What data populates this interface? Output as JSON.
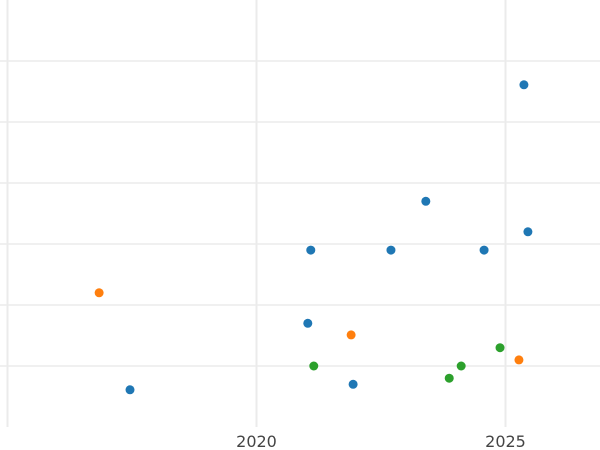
{
  "chart_data": {
    "type": "scatter",
    "title": "",
    "xlabel": "",
    "ylabel": "",
    "xlim": [
      2015,
      2026.9
    ],
    "ylim": [
      0,
      7
    ],
    "grid": true,
    "x_ticks": [
      2015,
      2020,
      2025
    ],
    "x_tick_labels": [
      "",
      "2020",
      "2025"
    ],
    "y_ticks": [
      1,
      2,
      3,
      4,
      5,
      6
    ],
    "series": [
      {
        "color": "#1f77b4",
        "points": [
          [
            2025.37,
            5.61
          ],
          [
            2023.4,
            3.7
          ],
          [
            2025.45,
            3.2
          ],
          [
            2021.09,
            2.9
          ],
          [
            2022.7,
            2.9
          ],
          [
            2024.57,
            2.9
          ],
          [
            2021.03,
            1.7
          ],
          [
            2021.94,
            0.7
          ],
          [
            2017.46,
            0.61
          ]
        ]
      },
      {
        "color": "#ff7f0e",
        "points": [
          [
            2016.84,
            2.2
          ],
          [
            2021.9,
            1.51
          ],
          [
            2025.27,
            1.1
          ]
        ]
      },
      {
        "color": "#2ca02c",
        "points": [
          [
            2021.15,
            1.0
          ],
          [
            2024.11,
            1.0
          ],
          [
            2024.89,
            1.3
          ],
          [
            2023.87,
            0.8
          ]
        ]
      }
    ]
  }
}
